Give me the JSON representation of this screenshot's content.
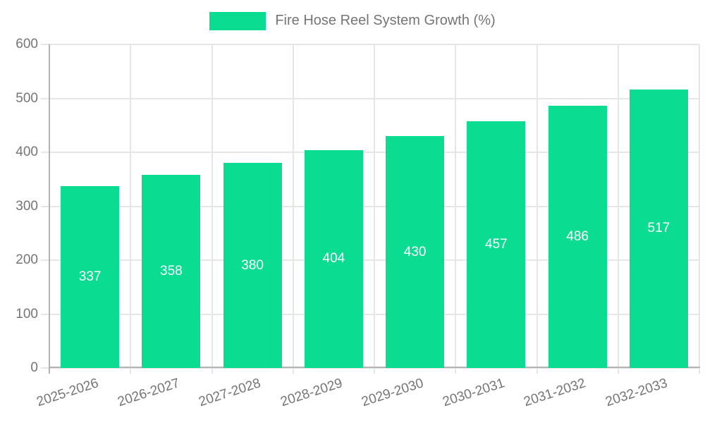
{
  "legend": {
    "label": "Fire Hose Reel System Growth (%)"
  },
  "chart_data": {
    "type": "bar",
    "title": "Fire Hose Reel System Growth (%)",
    "series_name": "Fire Hose Reel System Growth (%)",
    "categories": [
      "2025-2026",
      "2026-2027",
      "2027-2028",
      "2028-2029",
      "2029-2030",
      "2030-2031",
      "2031-2032",
      "2032-2033"
    ],
    "values": [
      337,
      358,
      380,
      404,
      430,
      457,
      486,
      517
    ],
    "value_labels": [
      "337",
      "358",
      "380",
      "404",
      "430",
      "457",
      "486",
      "517"
    ],
    "xlabel": "",
    "ylabel": "",
    "ylim": [
      0,
      600
    ],
    "yticks": [
      0,
      100,
      200,
      300,
      400,
      500,
      600
    ],
    "grid": true,
    "legend_position": "top-center",
    "bar_color": "#0adc92",
    "value_label_color": "#ffffff",
    "axis_text_color": "#757575",
    "gridline_color": "#e6e6e6",
    "axis_line_color": "#b3b3b3"
  }
}
